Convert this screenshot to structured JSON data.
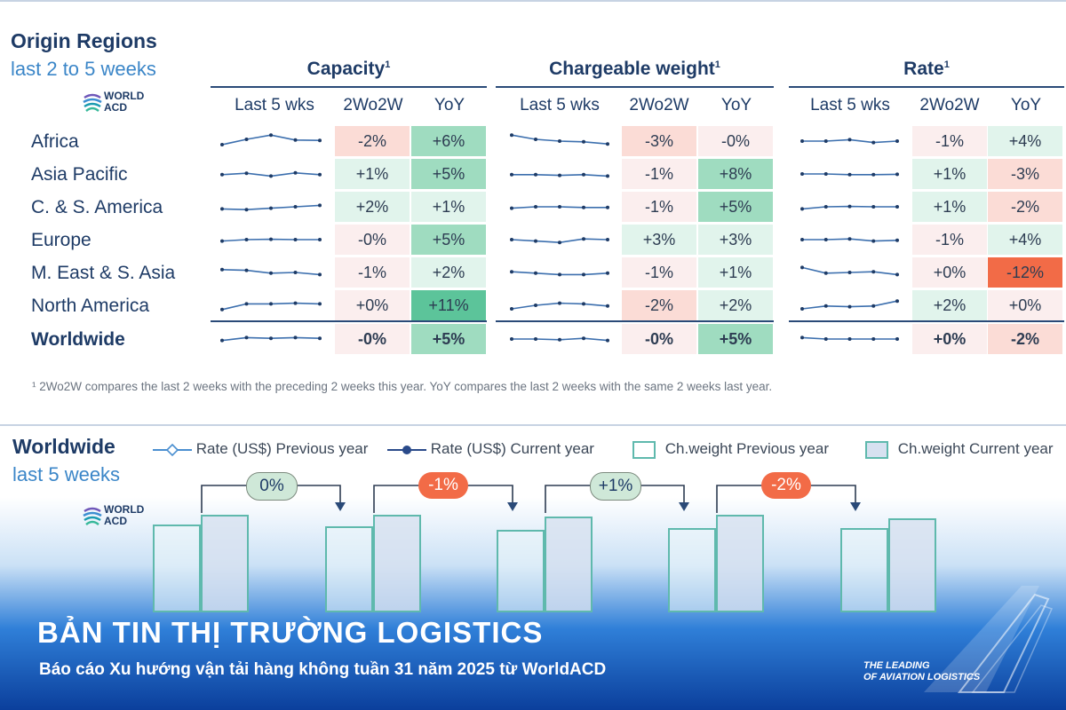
{
  "header": {
    "title": "Origin Regions",
    "subtitle": "last 2 to 5 weeks",
    "logo_line1": "WORLD",
    "logo_line2": "ACD"
  },
  "groups": [
    {
      "title": "Capacity",
      "sup": "1"
    },
    {
      "title": "Chargeable weight",
      "sup": "1"
    },
    {
      "title": "Rate",
      "sup": "1"
    }
  ],
  "columns": [
    "Last 5 wks",
    "2Wo2W",
    "YoY"
  ],
  "rows": [
    {
      "region": "Africa",
      "bold": false,
      "capacity": {
        "trend": [
          3,
          1.5,
          0.3,
          1.7,
          1.8
        ],
        "w2w": "-2%",
        "yoy": "+6%"
      },
      "chargeable": {
        "trend": [
          0.3,
          1.5,
          2,
          2.2,
          2.8
        ],
        "w2w": "-3%",
        "yoy": "-0%"
      },
      "rate": {
        "trend": [
          2,
          2,
          1.6,
          2.4,
          2
        ],
        "w2w": "-1%",
        "yoy": "+4%"
      }
    },
    {
      "region": "Asia Pacific",
      "bold": false,
      "capacity": {
        "trend": [
          2.2,
          1.8,
          2.6,
          1.7,
          2.2
        ],
        "w2w": "+1%",
        "yoy": "+5%"
      },
      "chargeable": {
        "trend": [
          2.2,
          2.2,
          2.4,
          2.2,
          2.6
        ],
        "w2w": "-1%",
        "yoy": "+8%"
      },
      "rate": {
        "trend": [
          2,
          2,
          2.2,
          2.2,
          2.1
        ],
        "w2w": "+1%",
        "yoy": "-3%"
      }
    },
    {
      "region": "C. & S. America",
      "bold": false,
      "capacity": {
        "trend": [
          2.6,
          2.8,
          2.4,
          2,
          1.6
        ],
        "w2w": "+2%",
        "yoy": "+1%"
      },
      "chargeable": {
        "trend": [
          2.4,
          2,
          2,
          2.2,
          2.2
        ],
        "w2w": "-1%",
        "yoy": "+5%"
      },
      "rate": {
        "trend": [
          2.6,
          2,
          1.9,
          2,
          2
        ],
        "w2w": "+1%",
        "yoy": "-2%"
      }
    },
    {
      "region": "Europe",
      "bold": false,
      "capacity": {
        "trend": [
          2.4,
          2,
          1.9,
          2,
          2
        ],
        "w2w": "-0%",
        "yoy": "+5%"
      },
      "chargeable": {
        "trend": [
          2,
          2.4,
          2.8,
          1.8,
          2
        ],
        "w2w": "+3%",
        "yoy": "+3%"
      },
      "rate": {
        "trend": [
          2,
          2,
          1.8,
          2.4,
          2.2
        ],
        "w2w": "-1%",
        "yoy": "+4%"
      }
    },
    {
      "region": "M. East & S. Asia",
      "bold": false,
      "capacity": {
        "trend": [
          1.2,
          1.4,
          2.2,
          2,
          2.6
        ],
        "w2w": "-1%",
        "yoy": "+2%"
      },
      "chargeable": {
        "trend": [
          1.8,
          2.2,
          2.6,
          2.6,
          2.2
        ],
        "w2w": "-1%",
        "yoy": "+1%"
      },
      "rate": {
        "trend": [
          0.6,
          2.2,
          2,
          1.8,
          2.6
        ],
        "w2w": "+0%",
        "yoy": "-12%"
      }
    },
    {
      "region": "North America",
      "bold": false,
      "capacity": {
        "trend": [
          3.2,
          1.6,
          1.6,
          1.4,
          1.6
        ],
        "w2w": "+0%",
        "yoy": "+11%"
      },
      "chargeable": {
        "trend": [
          3,
          2,
          1.4,
          1.6,
          2.2
        ],
        "w2w": "-2%",
        "yoy": "+2%"
      },
      "rate": {
        "trend": [
          3,
          2.2,
          2.4,
          2.2,
          0.8
        ],
        "w2w": "+2%",
        "yoy": "+0%"
      }
    },
    {
      "region": "Worldwide",
      "bold": true,
      "capacity": {
        "trend": [
          2.4,
          1.6,
          1.8,
          1.6,
          1.8
        ],
        "w2w": "-0%",
        "yoy": "+5%"
      },
      "chargeable": {
        "trend": [
          2,
          2,
          2.2,
          1.8,
          2.4
        ],
        "w2w": "-0%",
        "yoy": "+5%"
      },
      "rate": {
        "trend": [
          1.6,
          2,
          2,
          2,
          2
        ],
        "w2w": "+0%",
        "yoy": "-2%"
      }
    }
  ],
  "footnote": "¹ 2Wo2W compares the last 2 weeks with the preceding 2 weeks this year. YoY compares the last 2 weeks with the same 2 weeks last year.",
  "bottom": {
    "title": "Worldwide",
    "subtitle": "last 5 weeks",
    "legend": [
      "Rate (US$) Previous year",
      "Rate (US$) Current year",
      "Ch.weight Previous year",
      "Ch.weight Current year"
    ],
    "changes": [
      "0%",
      "-1%",
      "+1%",
      "-2%"
    ],
    "weight_bars": [
      {
        "prev": 90,
        "curr": 100
      },
      {
        "prev": 88,
        "curr": 100
      },
      {
        "prev": 85,
        "curr": 98
      },
      {
        "prev": 86,
        "curr": 100
      },
      {
        "prev": 86,
        "curr": 96
      }
    ]
  },
  "banner": {
    "title": "BẢN TIN THỊ TRƯỜNG LOGISTICS",
    "subtitle": "Báo cáo Xu hướng vận tải hàng không tuần 31 năm 2025 từ WorldACD",
    "tagline1": "THE LEADING",
    "tagline2": "OF AVIATION LOGISTICS"
  },
  "colors": {
    "navy": "#1e3b66",
    "accent": "#3b86c8",
    "green_strong": "#5cc49a",
    "green_mid": "#9fdcc0",
    "green_light": "#e1f4ec",
    "red_strong": "#f26b47",
    "red_light": "#fbdcd6",
    "neutral": "#fbeeee"
  }
}
